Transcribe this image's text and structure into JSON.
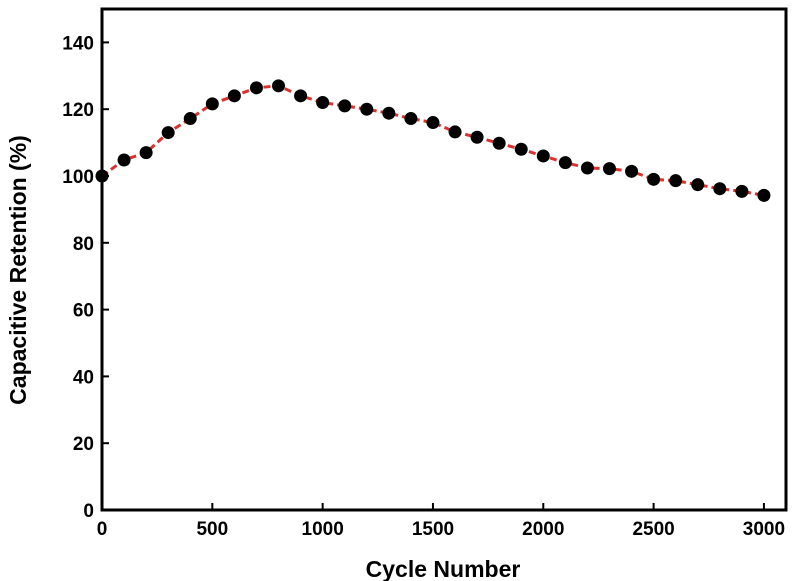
{
  "chart_data": {
    "type": "line",
    "title": "",
    "xlabel": "Cycle Number",
    "ylabel": "Capacitive Retention (%)",
    "xlim": [
      0,
      3100
    ],
    "ylim": [
      0,
      150
    ],
    "xticks": [
      0,
      500,
      1000,
      1500,
      2000,
      2500,
      3000
    ],
    "yticks": [
      0,
      20,
      40,
      60,
      80,
      100,
      120,
      140
    ],
    "grid": false,
    "series": [
      {
        "line_color": "#d9322f",
        "line_style": "dashed",
        "marker_color": "#000000",
        "marker": "circle",
        "x": [
          0,
          100,
          200,
          300,
          400,
          500,
          600,
          700,
          800,
          900,
          1000,
          1100,
          1200,
          1300,
          1400,
          1500,
          1600,
          1700,
          1800,
          1900,
          2000,
          2100,
          2200,
          2300,
          2400,
          2500,
          2600,
          2700,
          2800,
          2900,
          3000
        ],
        "y": [
          100,
          104.8,
          107,
          113,
          117.2,
          121.6,
          124,
          126.4,
          127,
          124,
          122,
          121,
          120,
          118.8,
          117.2,
          116,
          113.2,
          111.6,
          109.8,
          108,
          106,
          104,
          102.4,
          102.2,
          101.4,
          99,
          98.6,
          97.4,
          96.2,
          95.4,
          94.2
        ]
      }
    ]
  }
}
